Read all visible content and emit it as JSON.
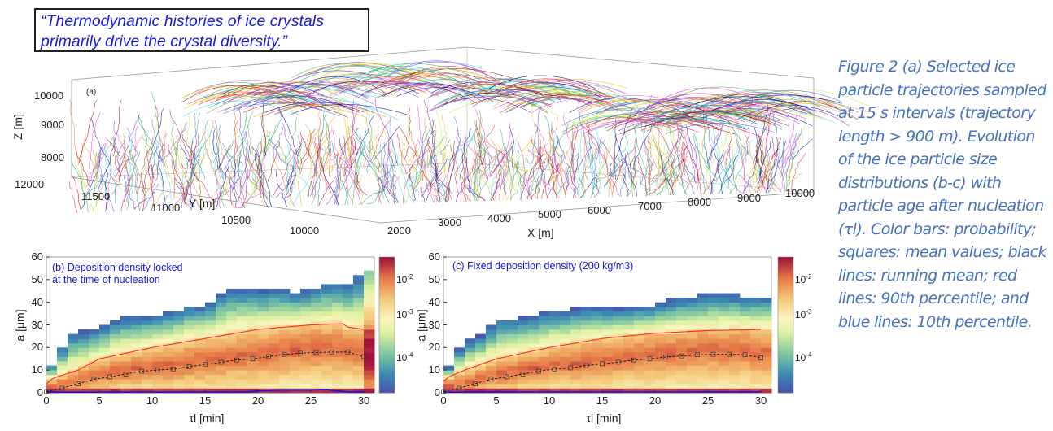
{
  "quote": "“Thermodynamic histories of ice crystals primarily drive the crystal diversity.”",
  "panel_a": {
    "label": "(a)",
    "z_axis": {
      "label": "Z [m]",
      "ticks": [
        "10000",
        "9000",
        "8000"
      ]
    },
    "y_axis": {
      "label": "Y [m]",
      "ticks": [
        "12000",
        "11500",
        "11000",
        "10500",
        "10000"
      ]
    },
    "x_axis": {
      "label": "X [m]",
      "ticks": [
        "2000",
        "3000",
        "4000",
        "5000",
        "6000",
        "7000",
        "8000",
        "9000",
        "10000"
      ]
    }
  },
  "caption": "Figure 2 (a) Selected ice particle trajectories sampled at 15 s intervals (trajectory length > 900 m). Evolution of the ice particle size distributions (b-c) with particle age after nucleation (τl). Color bars: probability; squares: mean values; black lines: running mean; red lines: 90th percentile; and blue lines: 10th percentile.",
  "chart_data": [
    {
      "type": "heatmap",
      "title": "(b) Deposition density locked at the time of nucleation",
      "title_lines": [
        "(b) Deposition density locked",
        "at the time of nucleation"
      ],
      "xlabel": "τl [min]",
      "ylabel": "a [μm]",
      "xlim": [
        0,
        31
      ],
      "ylim": [
        0,
        60
      ],
      "xticks": [
        "0",
        "5",
        "10",
        "15",
        "20",
        "25",
        "30"
      ],
      "yticks": [
        "0",
        "10",
        "20",
        "30",
        "40",
        "50",
        "60"
      ],
      "colorbar": {
        "scale": "log",
        "ticks": [
          "10-2",
          "10-3",
          "10-4"
        ]
      },
      "mean": {
        "x": [
          0,
          1.5,
          3,
          4.5,
          6,
          7.5,
          9,
          10.5,
          12,
          13.5,
          15,
          16.5,
          18,
          19.5,
          21,
          22.5,
          24,
          25.5,
          27,
          28.5,
          30
        ],
        "y": [
          0.5,
          2,
          4,
          6,
          7,
          8.3,
          9.5,
          10,
          10.5,
          11.5,
          12.5,
          13.5,
          14.5,
          15,
          16,
          17,
          17.5,
          17.8,
          18,
          18,
          16
        ]
      },
      "p90": {
        "x": [
          0,
          0.5,
          1,
          3,
          5,
          7,
          10,
          15,
          20,
          25,
          28,
          28.5,
          30
        ],
        "y": [
          4,
          6,
          7,
          10,
          15,
          17,
          20,
          24,
          28,
          30,
          30.5,
          29,
          28
        ]
      },
      "p10": {
        "x": [
          0,
          19,
          20,
          22,
          25,
          26.5,
          27,
          28.5,
          30
        ],
        "y": [
          0.3,
          0.3,
          0.8,
          1.2,
          1.2,
          1.5,
          1,
          0.4,
          0.4
        ]
      },
      "max": {
        "x": [
          0,
          1,
          2,
          4,
          5,
          7,
          10,
          12,
          13.5,
          15,
          16.5,
          18,
          20,
          22,
          23.5,
          25,
          27,
          29,
          30
        ],
        "y": [
          10,
          14,
          25,
          27,
          27,
          33,
          33,
          35,
          38,
          37,
          43,
          46,
          44,
          46,
          44,
          45,
          48,
          48,
          54
        ]
      }
    },
    {
      "type": "heatmap",
      "title": "(c) Fixed deposition density (200 kg/m3)",
      "title_lines": [
        "(c) Fixed deposition density (200 kg/m3)"
      ],
      "xlabel": "τl [min]",
      "ylabel": "a [μm]",
      "xlim": [
        0,
        31
      ],
      "ylim": [
        0,
        60
      ],
      "xticks": [
        "0",
        "5",
        "10",
        "15",
        "20",
        "25",
        "30"
      ],
      "yticks": [
        "0",
        "10",
        "20",
        "30",
        "40",
        "50",
        "60"
      ],
      "colorbar": {
        "scale": "log",
        "ticks": [
          "10-2",
          "10-3",
          "10-4"
        ]
      },
      "mean": {
        "x": [
          0,
          1.5,
          3,
          4.5,
          6,
          7.5,
          9,
          10.5,
          12,
          13.5,
          15,
          16.5,
          18,
          19.5,
          21,
          22.5,
          24,
          25.5,
          27,
          28.5,
          30
        ],
        "y": [
          0.5,
          2,
          4,
          6,
          7,
          8.3,
          9.5,
          10.5,
          11,
          12,
          12.8,
          13.5,
          14.5,
          15,
          15.8,
          16.3,
          16.8,
          17,
          17,
          16.8,
          15.5
        ]
      },
      "p90": {
        "x": [
          0,
          0.5,
          2,
          5,
          10,
          15,
          20,
          25,
          30
        ],
        "y": [
          5,
          7,
          10,
          15,
          20,
          24,
          26.3,
          27.5,
          28
        ]
      },
      "p10": {
        "x": [
          0,
          30
        ],
        "y": [
          0.3,
          0.4
        ]
      },
      "max": {
        "x": [
          0,
          1,
          2,
          4,
          5,
          7,
          10,
          12,
          14,
          16,
          18,
          20,
          22,
          24,
          26,
          28,
          30
        ],
        "y": [
          6,
          16,
          22,
          25,
          32,
          32,
          35,
          36,
          37,
          36,
          37,
          38,
          41,
          42,
          44,
          42,
          42
        ]
      }
    }
  ],
  "colors": {
    "caption": "#4472c4",
    "quote": "#1a1adb",
    "p90": "#ff2a2a",
    "p10": "#1010ff",
    "mean": "#111111"
  }
}
